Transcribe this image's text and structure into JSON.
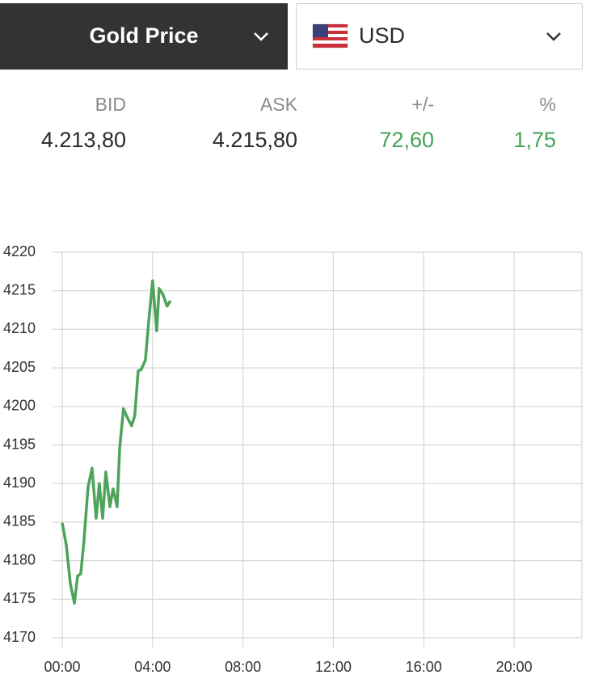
{
  "header": {
    "metal": "Gold Price",
    "currency": "USD"
  },
  "quote": [
    {
      "label": "BID",
      "value": "4.213,80"
    },
    {
      "label": "ASK",
      "value": "4.215,80"
    },
    {
      "label": "+/-",
      "value": "72,60"
    },
    {
      "label": "%",
      "value": "1,75"
    }
  ],
  "chart_data": {
    "type": "line",
    "color": "#4ca35a",
    "grid": true,
    "x": [
      0,
      0.18,
      0.36,
      0.54,
      0.68,
      0.82,
      0.96,
      1.14,
      1.32,
      1.5,
      1.64,
      1.79,
      1.93,
      2.11,
      2.25,
      2.43,
      2.54,
      2.71,
      2.89,
      3.07,
      3.21,
      3.36,
      3.5,
      3.68,
      3.82,
      4.0,
      4.18,
      4.29,
      4.46,
      4.64,
      4.79
    ],
    "values": [
      4184.9,
      4182,
      4177,
      4174.5,
      4178,
      4178.3,
      4182.5,
      4189.5,
      4192,
      4185.5,
      4190,
      4185.5,
      4191.5,
      4187,
      4189.3,
      4187,
      4194.5,
      4199.7,
      4198.5,
      4197.5,
      4198.8,
      4204.6,
      4204.8,
      4206,
      4210.8,
      4216.3,
      4209.8,
      4215.3,
      4214.5,
      4213,
      4213.7
    ],
    "xlim": [
      0,
      23
    ],
    "xticks": [
      {
        "value": 0,
        "label": "00:00"
      },
      {
        "value": 4,
        "label": "04:00"
      },
      {
        "value": 8,
        "label": "08:00"
      },
      {
        "value": 12,
        "label": "12:00"
      },
      {
        "value": 16,
        "label": "16:00"
      },
      {
        "value": 20,
        "label": "20:00"
      }
    ],
    "ylim": [
      4170,
      4220
    ],
    "yticks": [
      4170,
      4175,
      4180,
      4185,
      4190,
      4195,
      4200,
      4205,
      4210,
      4215,
      4220
    ]
  }
}
